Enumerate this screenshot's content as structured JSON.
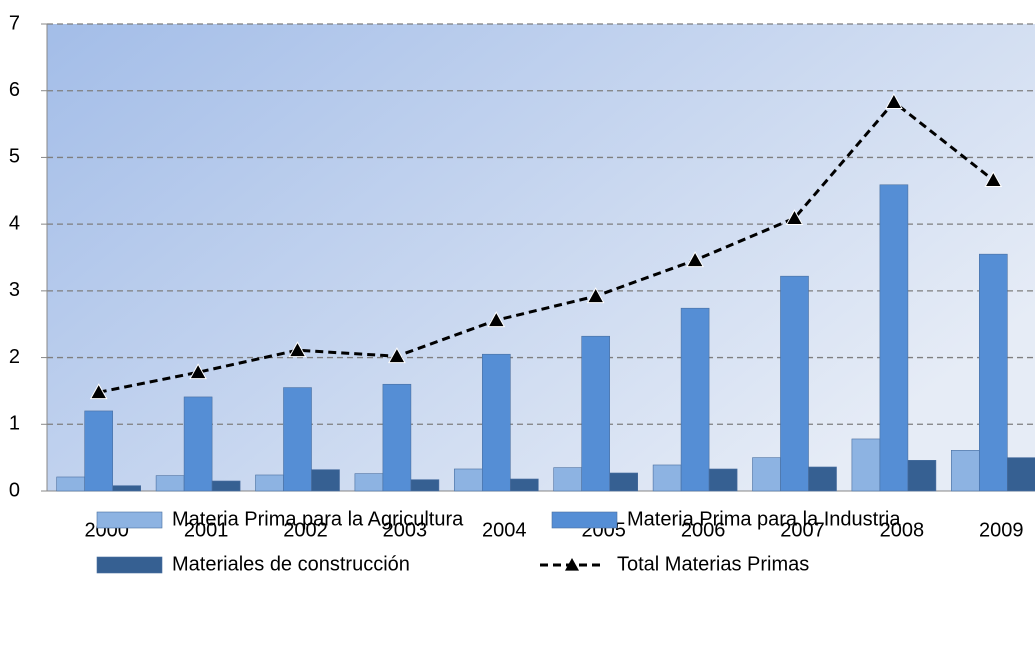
{
  "chart_data": {
    "type": "bar",
    "categories": [
      "2000",
      "2001",
      "2002",
      "2003",
      "2004",
      "2005",
      "2006",
      "2007",
      "2008",
      "2009"
    ],
    "series": [
      {
        "name": "Materia Prima para la Agricultura",
        "type": "bar",
        "color": "#8db3e2",
        "values": [
          0.21,
          0.23,
          0.24,
          0.26,
          0.33,
          0.35,
          0.39,
          0.5,
          0.78,
          0.61
        ]
      },
      {
        "name": "Materia Prima para la Industria",
        "type": "bar",
        "color": "#558ed5",
        "values": [
          1.2,
          1.41,
          1.55,
          1.6,
          2.05,
          2.32,
          2.74,
          3.22,
          4.59,
          3.55
        ]
      },
      {
        "name": "Materiales de construcción",
        "type": "bar",
        "color": "#366092",
        "values": [
          0.08,
          0.15,
          0.32,
          0.17,
          0.18,
          0.27,
          0.33,
          0.36,
          0.46,
          0.5
        ]
      },
      {
        "name": "Total Materias Primas",
        "type": "line",
        "color": "#000000",
        "values": [
          1.48,
          1.78,
          2.11,
          2.02,
          2.56,
          2.92,
          3.46,
          4.09,
          5.83,
          4.66
        ]
      }
    ],
    "ylim": [
      0,
      7
    ],
    "yticks": [
      0,
      1,
      2,
      3,
      4,
      5,
      6,
      7
    ],
    "grid": true,
    "legend": "bottom"
  }
}
